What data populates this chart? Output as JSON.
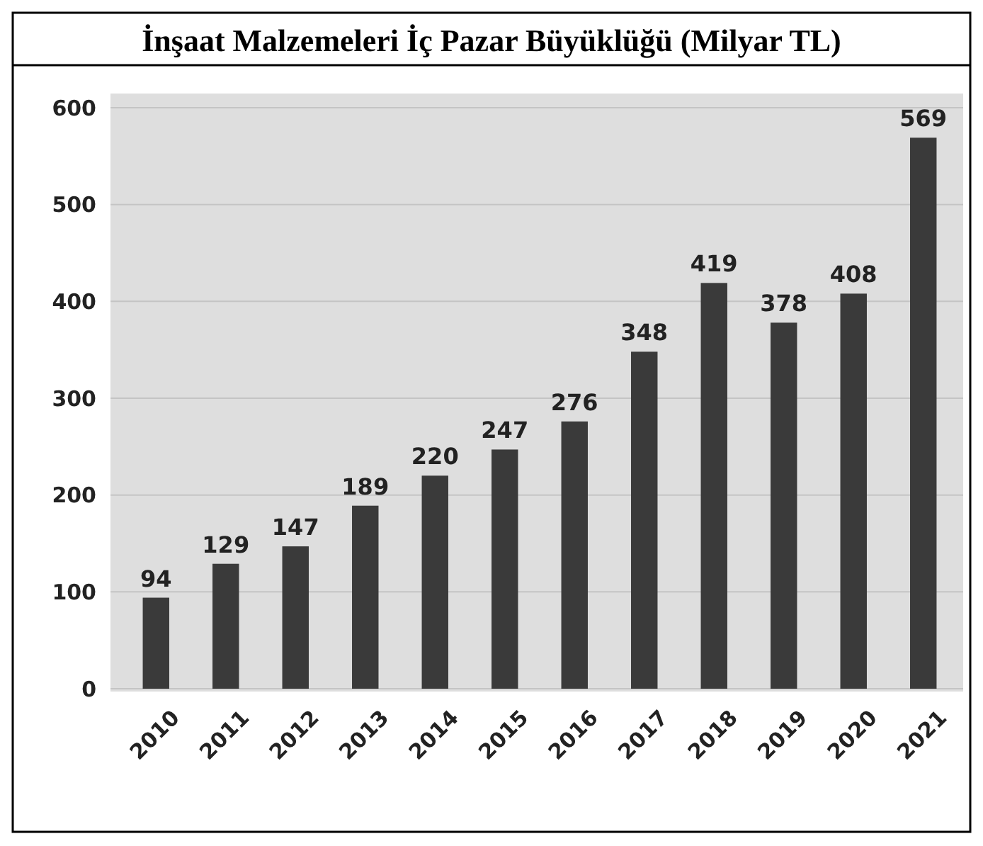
{
  "chart_data": {
    "type": "bar",
    "title": "İnşaat Malzemeleri İç Pazar Büyüklüğü (Milyar TL)",
    "categories": [
      "2010",
      "2011",
      "2012",
      "2013",
      "2014",
      "2015",
      "2016",
      "2017",
      "2018",
      "2019",
      "2020",
      "2021"
    ],
    "values": [
      94,
      129,
      147,
      189,
      220,
      247,
      276,
      348,
      419,
      378,
      408,
      569
    ],
    "color": "#3a3a3a",
    "ylim": [
      0,
      600
    ],
    "yticks": [
      0,
      100,
      200,
      300,
      400,
      500,
      600
    ],
    "grid": "y",
    "data_labels": true
  }
}
